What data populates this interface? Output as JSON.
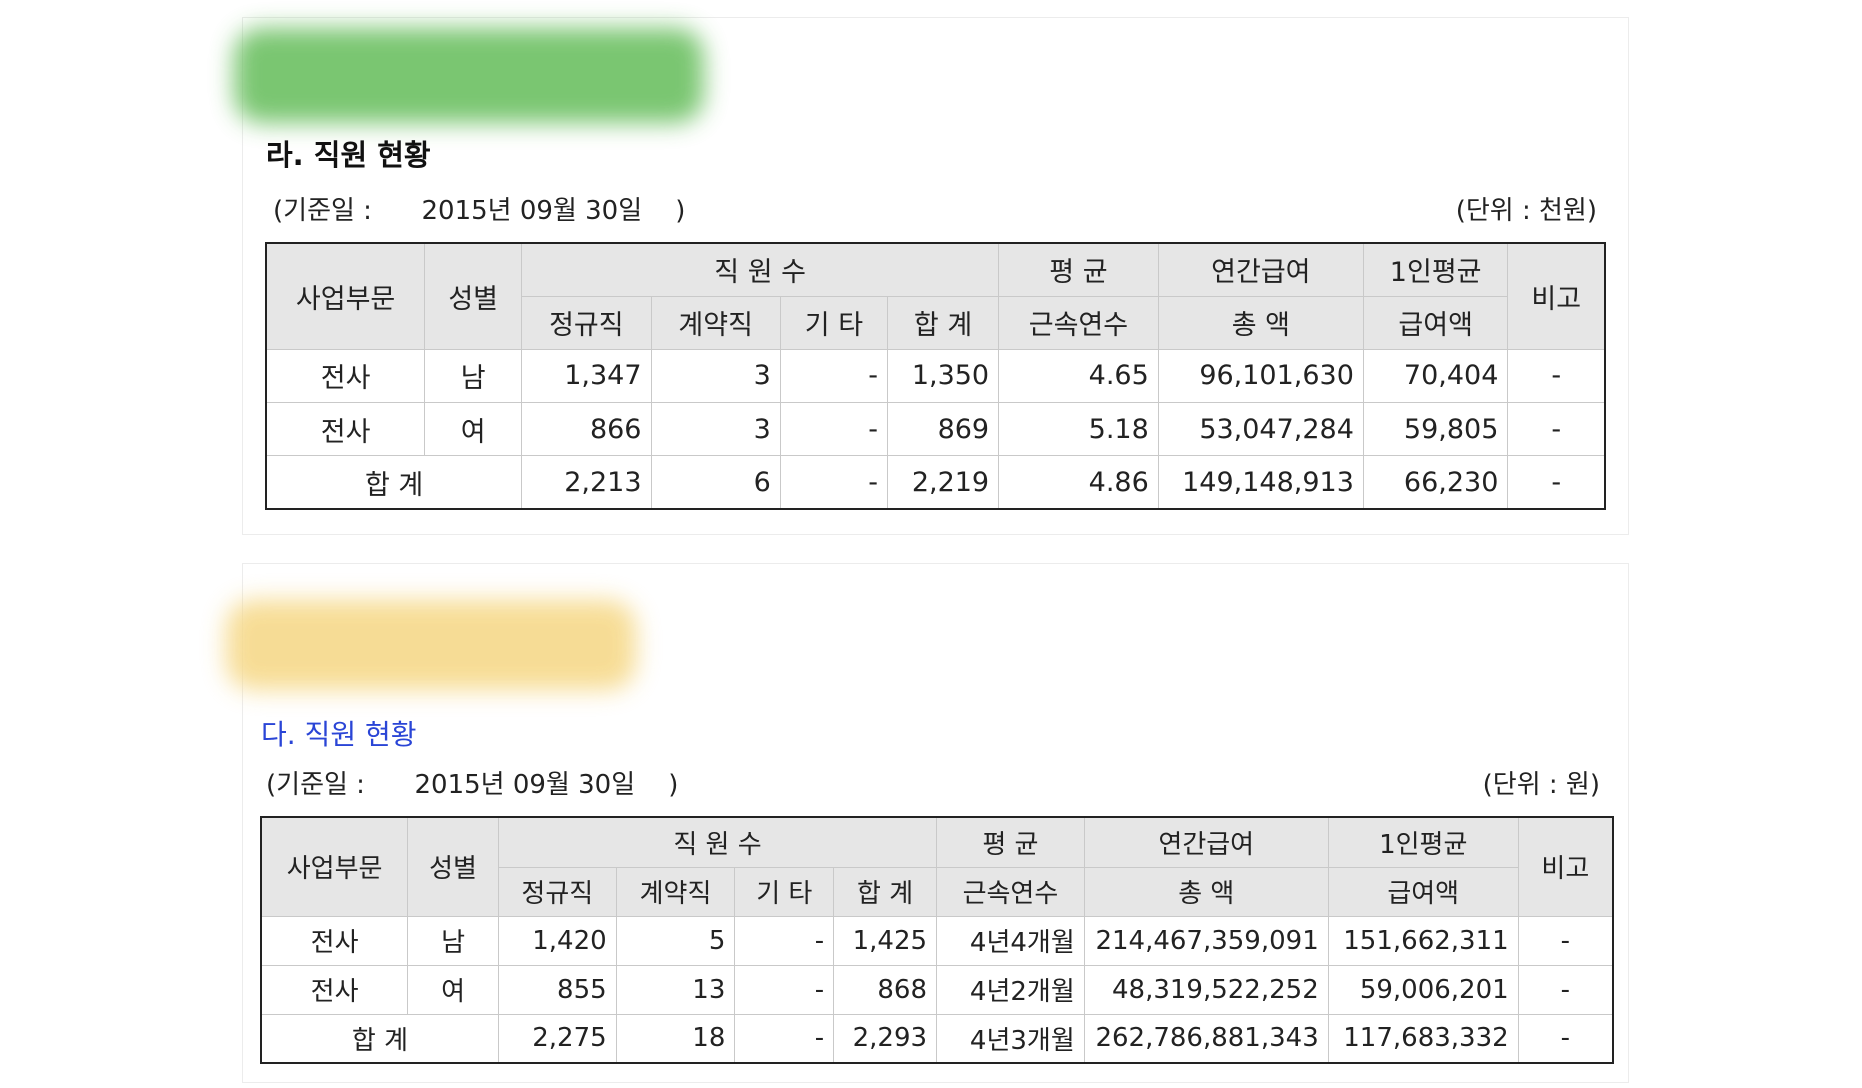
{
  "section1": {
    "title": "라. 직원 현황",
    "date_note": "(기준일 :      2015년 09월 30일    )",
    "unit_note": "(단위 : 천원)",
    "headers": {
      "division": "사업부문",
      "gender": "성별",
      "staff_count": "직 원 수",
      "regular": "정규직",
      "contract": "계약직",
      "other": "기 타",
      "subtotal": "합 계",
      "avg_top": "평 균",
      "avg_bottom": "근속연수",
      "annual_top": "연간급여",
      "annual_bottom": "총 액",
      "per_top": "1인평균",
      "per_bottom": "급여액",
      "remarks": "비고"
    },
    "rows": [
      {
        "division": "전사",
        "gender": "남",
        "regular": "1,347",
        "contract": "3",
        "other": "-",
        "total": "1,350",
        "tenure": "4.65",
        "annual": "96,101,630",
        "per": "70,404",
        "remarks": "-"
      },
      {
        "division": "전사",
        "gender": "여",
        "regular": "866",
        "contract": "3",
        "other": "-",
        "total": "869",
        "tenure": "5.18",
        "annual": "53,047,284",
        "per": "59,805",
        "remarks": "-"
      }
    ],
    "total_row": {
      "label": "합 계",
      "regular": "2,213",
      "contract": "6",
      "other": "-",
      "total": "2,219",
      "tenure": "4.86",
      "annual": "149,148,913",
      "per": "66,230",
      "remarks": "-"
    }
  },
  "section2": {
    "title": "다. 직원 현황",
    "date_note": "(기준일 :      2015년 09월 30일    )",
    "unit_note": "(단위 : 원)",
    "headers": {
      "division": "사업부문",
      "gender": "성별",
      "staff_count": "직 원 수",
      "regular": "정규직",
      "contract": "계약직",
      "other": "기 타",
      "subtotal": "합 계",
      "avg_top": "평 균",
      "avg_bottom": "근속연수",
      "annual_top": "연간급여",
      "annual_bottom": "총 액",
      "per_top": "1인평균",
      "per_bottom": "급여액",
      "remarks": "비고"
    },
    "rows": [
      {
        "division": "전사",
        "gender": "남",
        "regular": "1,420",
        "contract": "5",
        "other": "-",
        "total": "1,425",
        "tenure": "4년4개월",
        "annual": "214,467,359,091",
        "per": "151,662,311",
        "remarks": "-"
      },
      {
        "division": "전사",
        "gender": "여",
        "regular": "855",
        "contract": "13",
        "other": "-",
        "total": "868",
        "tenure": "4년2개월",
        "annual": "48,319,522,252",
        "per": "59,006,201",
        "remarks": "-"
      }
    ],
    "total_row": {
      "label": "합 계",
      "regular": "2,275",
      "contract": "18",
      "other": "-",
      "total": "2,293",
      "tenure": "4년3개월",
      "annual": "262,786,881,343",
      "per": "117,683,332",
      "remarks": "-"
    }
  }
}
